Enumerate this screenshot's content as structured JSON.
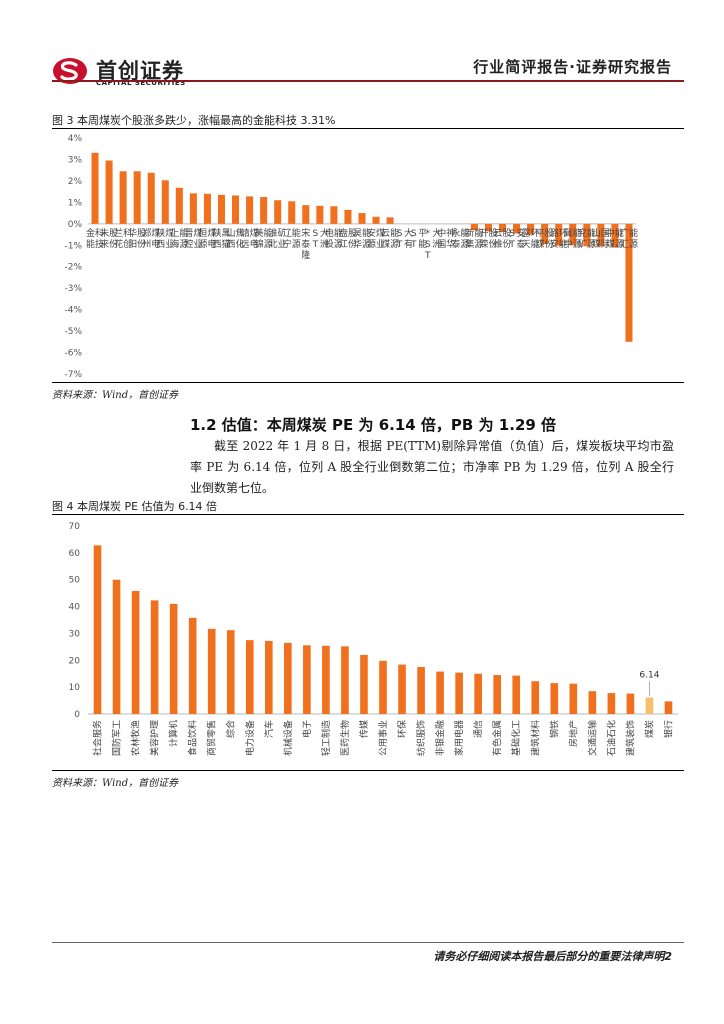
{
  "header": {
    "logo_cn": "首创证券",
    "logo_en": "CAPITAL SECURITIES",
    "report_type": "行业简评报告·证券研究报告"
  },
  "figure3": {
    "title": "图 3 本周煤炭个股涨多跌少，涨幅最高的金能科技 3.31%",
    "source": "资料来源：Wind，首创证券"
  },
  "section": {
    "heading": "1.2 估值：本周煤炭 PE 为 6.14 倍，PB 为 1.29 倍",
    "body": "截至 2022 年 1 月 8 日，根据 PE(TTM)剔除异常值（负值）后，煤炭板块平均市盈率 PE 为 6.14 倍，位列 A 股全行业倒数第二位；市净率 PB 为 1.29 倍，位列 A 股全行业倒数第七位。"
  },
  "figure4": {
    "title": "图 4 本周煤炭 PE 估值为 6.14 倍",
    "source": "资料来源：Wind，首创证券"
  },
  "footer": {
    "disclaimer": "请务必仔细阅读本报告最后部分的重要法律声明",
    "page": "2"
  },
  "colors": {
    "bar": "#F0701E",
    "highlight": "#F5C06A",
    "brand": "#C8102E"
  },
  "chart_data": [
    {
      "type": "bar",
      "title": "本周煤炭个股涨多跌少，涨幅最高的金能科技 3.31%",
      "xlabel": "",
      "ylabel": "",
      "ylim": [
        -7,
        4
      ],
      "yticks": [
        "4%",
        "3%",
        "2%",
        "1%",
        "0%",
        "-1%",
        "-2%",
        "-3%",
        "-4%",
        "-5%",
        "-6%",
        "-7%"
      ],
      "categories": [
        "金能科技",
        "未来股份",
        "兰花科创",
        "华阳股份",
        "郑州煤电",
        "陕西煤业",
        "上海能源",
        "晋控煤业",
        "恒源煤电",
        "陕西黑猫",
        "山西焦化",
        "靖远煤电",
        "美锦能源",
        "淮北矿业",
        "辽宁能源",
        "宋泰隆",
        "ST大洲",
        "电投能源",
        "盘江股份",
        "昊华能源",
        "安源煤业",
        "云煤能源",
        "ST大有",
        "ST平能",
        "*ST大洲",
        "中国神华",
        "永泰能源",
        "新集能源",
        "开滦股份",
        "云维股份",
        "ST安泰",
        "露天环能",
        "平煤股份",
        "潞安环能",
        "冀中能源",
        "兖矿能源",
        "山煤国际",
        "中煤能源",
        "广汇能源"
      ],
      "values": [
        3.31,
        2.95,
        2.45,
        2.45,
        2.38,
        2.03,
        1.68,
        1.42,
        1.4,
        1.35,
        1.32,
        1.28,
        1.25,
        1.1,
        1.05,
        0.87,
        0.84,
        0.82,
        0.65,
        0.5,
        0.33,
        0.3,
        0,
        0,
        0,
        0,
        0,
        -0.3,
        -0.35,
        -0.38,
        -0.45,
        -0.5,
        -0.95,
        -1.02,
        -1.0,
        -1.05,
        -1.05,
        -1.1,
        -5.5
      ]
    },
    {
      "type": "bar",
      "title": "本周煤炭 PE 估值为 6.14 倍",
      "xlabel": "",
      "ylabel": "",
      "ylim": [
        0,
        70
      ],
      "yticks": [
        "70",
        "60",
        "50",
        "40",
        "30",
        "20",
        "10",
        "0"
      ],
      "highlight": "煤炭",
      "annotation": "6.14",
      "categories": [
        "社会服务",
        "国防军工",
        "农林牧渔",
        "美容护理",
        "计算机",
        "食品饮料",
        "商贸零售",
        "综合",
        "电力设备",
        "汽车",
        "机械设备",
        "电子",
        "轻工制造",
        "医药生物",
        "传媒",
        "公用事业",
        "环保",
        "纺织服饰",
        "非银金融",
        "家用电器",
        "通信",
        "有色金属",
        "基础化工",
        "建筑材料",
        "钢铁",
        "房地产",
        "交通运输",
        "石油石化",
        "建筑装饰",
        "煤炭",
        "银行"
      ],
      "values": [
        62.8,
        50.0,
        45.8,
        42.3,
        41.0,
        35.8,
        31.7,
        31.2,
        27.5,
        27.2,
        26.5,
        25.6,
        25.4,
        25.2,
        22.0,
        19.8,
        18.4,
        17.5,
        15.8,
        15.4,
        15.0,
        14.5,
        14.3,
        12.2,
        11.5,
        11.3,
        8.5,
        7.8,
        7.6,
        6.14,
        4.7
      ]
    }
  ]
}
